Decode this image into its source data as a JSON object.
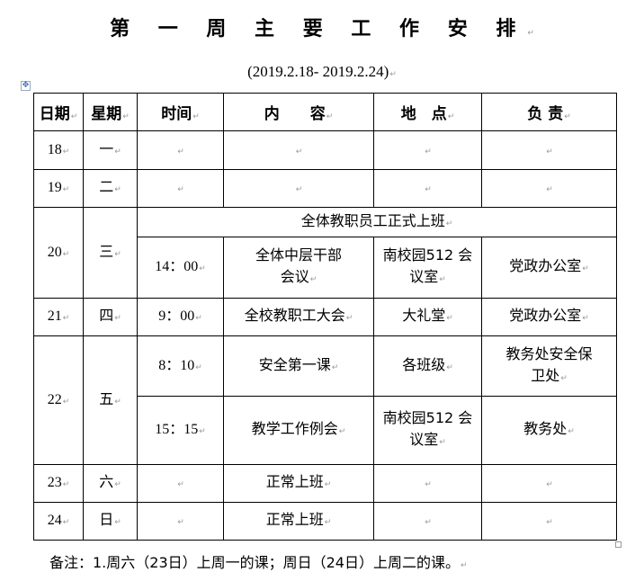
{
  "title": "第 一 周 主 要 工 作 安 排",
  "subtitle": "(2019.2.18- 2019.2.24)",
  "headers": [
    "日期",
    "星期",
    "时间",
    "内　　容",
    "地　点",
    "负 责"
  ],
  "rows": {
    "r18": {
      "date": "18",
      "day": "一"
    },
    "r19": {
      "date": "19",
      "day": "二"
    },
    "r20": {
      "date": "20",
      "day": "三",
      "all": "全体教职员工正式上班",
      "time": "14：00",
      "content": "全体中层干部会议",
      "place": "南校园512 会议室",
      "owner": "党政办公室"
    },
    "r21": {
      "date": "21",
      "day": "四",
      "time": "9：00",
      "content": "全校教职工大会",
      "place": "大礼堂",
      "owner": "党政办公室"
    },
    "r22": {
      "date": "22",
      "day": "五",
      "time1": "8：10",
      "content1": "安全第一课",
      "place1": "各班级",
      "owner1": "教务处安全保卫处",
      "time2": "15：15",
      "content2": "教学工作例会",
      "place2": "南校园512 会议室",
      "owner2": "教务处"
    },
    "r23": {
      "date": "23",
      "day": "六",
      "content": "正常上班"
    },
    "r24": {
      "date": "24",
      "day": "日",
      "content": "正常上班"
    }
  },
  "note": "备注：1.周六（23日）上周一的课；周日（24日）上周二的课。"
}
